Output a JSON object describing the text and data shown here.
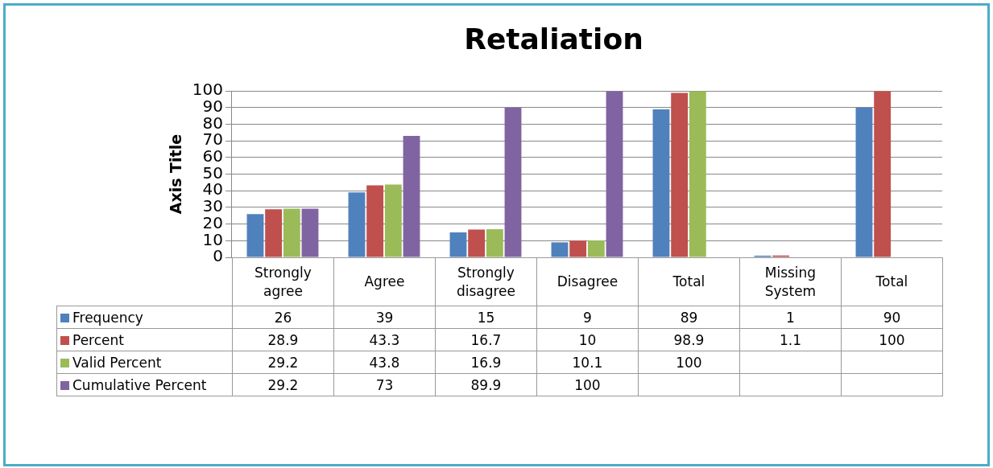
{
  "chart_data": {
    "type": "bar",
    "title": "Retaliation",
    "ylabel": "Axis Title",
    "categories": [
      "Strongly agree",
      "Agree",
      "Strongly disagree",
      "Disagree",
      "Total",
      "Missing System",
      "Total"
    ],
    "series": [
      {
        "name": "Frequency",
        "color": "#4f81bd",
        "values": [
          26,
          39,
          15,
          9,
          89,
          1,
          90
        ]
      },
      {
        "name": "Percent",
        "color": "#c0504d",
        "values": [
          28.9,
          43.3,
          16.7,
          10,
          98.9,
          1.1,
          100
        ]
      },
      {
        "name": "Valid Percent",
        "color": "#9bbb59",
        "values": [
          29.2,
          43.8,
          16.9,
          10.1,
          100,
          null,
          null
        ]
      },
      {
        "name": "Cumulative Percent",
        "color": "#8064a2",
        "values": [
          29.2,
          73,
          89.9,
          100,
          null,
          null,
          null
        ]
      }
    ],
    "ylim": [
      0,
      100
    ],
    "yticks": [
      0,
      10,
      20,
      30,
      40,
      50,
      60,
      70,
      80,
      90,
      100
    ],
    "grid": "y",
    "legend": "bottom",
    "data_labels": true
  }
}
